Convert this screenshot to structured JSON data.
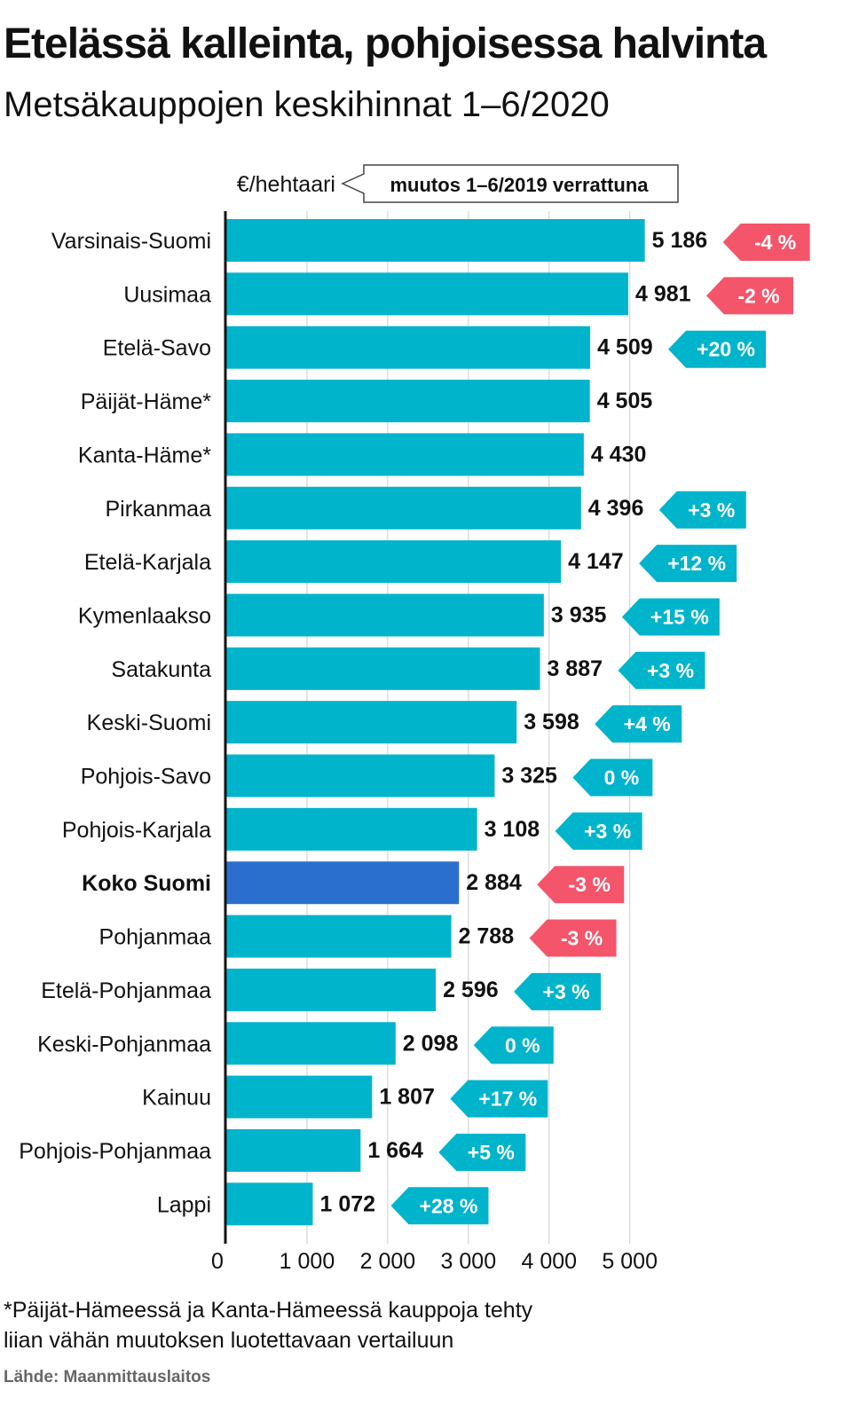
{
  "title": "Etelässä kalleinta, pohjoisessa halvinta",
  "subtitle": "Metsäkauppojen keskihinnat 1–6/2020",
  "chart_data": {
    "type": "bar",
    "orientation": "horizontal",
    "unit_label": "€/hehtaari",
    "change_label": "muutos 1–6/2019 verrattuna",
    "categories": [
      "Varsinais-Suomi",
      "Uusimaa",
      "Etelä-Savo",
      "Päijät-Häme*",
      "Kanta-Häme*",
      "Pirkanmaa",
      "Etelä-Karjala",
      "Kymenlaakso",
      "Satakunta",
      "Keski-Suomi",
      "Pohjois-Savo",
      "Pohjois-Karjala",
      "Koko Suomi",
      "Pohjanmaa",
      "Etelä-Pohjanmaa",
      "Keski-Pohjanmaa",
      "Kainuu",
      "Pohjois-Pohjanmaa",
      "Lappi"
    ],
    "values": [
      5186,
      4981,
      4509,
      4505,
      4430,
      4396,
      4147,
      3935,
      3887,
      3598,
      3325,
      3108,
      2884,
      2788,
      2596,
      2098,
      1807,
      1664,
      1072
    ],
    "value_labels": [
      "5 186",
      "4 981",
      "4 509",
      "4 505",
      "4 430",
      "4 396",
      "4 147",
      "3 935",
      "3 887",
      "3 598",
      "3 325",
      "3 108",
      "2 884",
      "2 788",
      "2 596",
      "2 098",
      "1 807",
      "1 664",
      "1 072"
    ],
    "changes": [
      "-4 %",
      "-2 %",
      "+20 %",
      null,
      null,
      "+3 %",
      "+12 %",
      "+15 %",
      "+3 %",
      "+4 %",
      "0 %",
      "+3 %",
      "-3 %",
      "-3 %",
      "+3 %",
      "0 %",
      "+17 %",
      "+5 %",
      "+28 %"
    ],
    "highlight": "Koko Suomi",
    "xlim": [
      0,
      5300
    ],
    "xticks": [
      0,
      1000,
      2000,
      3000,
      4000,
      5000
    ],
    "xtick_labels": [
      "0",
      "1 000",
      "2 000",
      "3 000",
      "4 000",
      "5 000"
    ],
    "grid": true,
    "colors": {
      "bar": "#00b4cc",
      "highlight": "#2b6fce",
      "negative": "#f4556a",
      "positive": "#00b4cc",
      "grid": "#cccccc",
      "axis": "#111111"
    }
  },
  "footnote": [
    "*Päijät-Hämeessä ja Kanta-Hämeessä kauppoja tehty",
    "liian vähän muutoksen luotettavaan vertailuun"
  ],
  "source": "Lähde: Maanmittauslaitos"
}
